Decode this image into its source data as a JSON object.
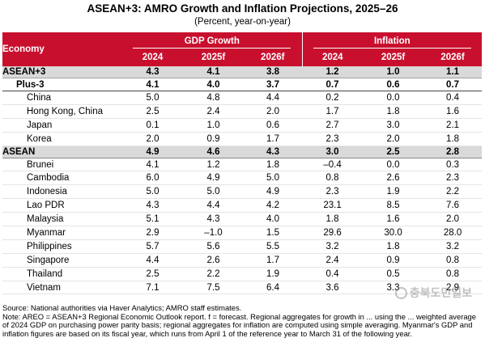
{
  "title": "ASEAN+3: AMRO Growth and Inflation Projections, 2025–26",
  "subtitle": "(Percent, year-on-year)",
  "header": {
    "economy": "Economy",
    "gdp_group": "GDP Growth",
    "inflation_group": "Inflation",
    "years": [
      "2024",
      "2025f",
      "2026f",
      "2024",
      "2025f",
      "2026f"
    ]
  },
  "rows": [
    {
      "name": "ASEAN+3",
      "gdp": [
        "4.3",
        "4.1",
        "3.8"
      ],
      "inf": [
        "1.2",
        "1.0",
        "1.1"
      ]
    },
    {
      "name": "Plus-3",
      "gdp": [
        "4.1",
        "4.0",
        "3.7"
      ],
      "inf": [
        "0.7",
        "0.6",
        "0.7"
      ]
    },
    {
      "name": "China",
      "gdp": [
        "5.0",
        "4.8",
        "4.4"
      ],
      "inf": [
        "0.2",
        "0.0",
        "0.4"
      ]
    },
    {
      "name": "Hong Kong, China",
      "gdp": [
        "2.5",
        "2.4",
        "2.0"
      ],
      "inf": [
        "1.7",
        "1.8",
        "1.6"
      ]
    },
    {
      "name": "Japan",
      "gdp": [
        "0.1",
        "1.0",
        "0.6"
      ],
      "inf": [
        "2.7",
        "3.0",
        "2.1"
      ]
    },
    {
      "name": "Korea",
      "gdp": [
        "2.0",
        "0.9",
        "1.7"
      ],
      "inf": [
        "2.3",
        "2.0",
        "1.8"
      ]
    },
    {
      "name": "ASEAN",
      "gdp": [
        "4.9",
        "4.6",
        "4.3"
      ],
      "inf": [
        "3.0",
        "2.5",
        "2.8"
      ]
    },
    {
      "name": "Brunei",
      "gdp": [
        "4.1",
        "1.2",
        "1.8"
      ],
      "inf": [
        "–0.4",
        "0.0",
        "0.3"
      ]
    },
    {
      "name": "Cambodia",
      "gdp": [
        "6.0",
        "4.9",
        "5.0"
      ],
      "inf": [
        "0.8",
        "2.6",
        "2.3"
      ]
    },
    {
      "name": "Indonesia",
      "gdp": [
        "5.0",
        "5.0",
        "4.9"
      ],
      "inf": [
        "2.3",
        "1.9",
        "2.2"
      ]
    },
    {
      "name": "Lao PDR",
      "gdp": [
        "4.3",
        "4.4",
        "4.2"
      ],
      "inf": [
        "23.1",
        "8.5",
        "7.6"
      ]
    },
    {
      "name": "Malaysia",
      "gdp": [
        "5.1",
        "4.3",
        "4.0"
      ],
      "inf": [
        "1.8",
        "1.6",
        "2.0"
      ]
    },
    {
      "name": "Myanmar",
      "gdp": [
        "2.9",
        "–1.0",
        "1.5"
      ],
      "inf": [
        "29.6",
        "30.0",
        "28.0"
      ]
    },
    {
      "name": "Philippines",
      "gdp": [
        "5.7",
        "5.6",
        "5.5"
      ],
      "inf": [
        "3.2",
        "1.8",
        "3.2"
      ]
    },
    {
      "name": "Singapore",
      "gdp": [
        "4.4",
        "2.6",
        "1.7"
      ],
      "inf": [
        "2.4",
        "0.9",
        "0.8"
      ]
    },
    {
      "name": "Thailand",
      "gdp": [
        "2.5",
        "2.2",
        "1.9"
      ],
      "inf": [
        "0.4",
        "0.5",
        "0.8"
      ]
    },
    {
      "name": "Vietnam",
      "gdp": [
        "7.1",
        "7.5",
        "6.4"
      ],
      "inf": [
        "3.6",
        "3.3",
        "2.9"
      ]
    }
  ],
  "footnotes": {
    "source": "Source: National authorities via Haver Analytics; AMRO staff estimates.",
    "note": "Note: AREO = ASEAN+3 Regional Economic Outlook report. f = forecast. Regional aggregates for growth in ... using the ... weighted average of 2024 GDP on purchasing power parity basis; regional aggregates for inflation are computed using simple averaging. Myanmar's GDP and inflation figures are based on its fiscal year, which runs from April 1 of the reference year to March 31 of the following year."
  },
  "watermark": "충북도민일보"
}
